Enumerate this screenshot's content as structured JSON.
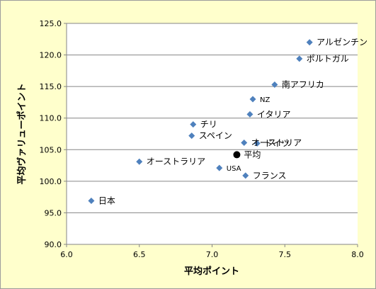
{
  "chart_data": {
    "type": "scatter",
    "title": "",
    "xlabel": "平均ポイント",
    "ylabel": "平均ヴァリューポイント",
    "xlim": [
      6.0,
      8.0
    ],
    "ylim": [
      90.0,
      125.0
    ],
    "xticks": [
      "6.0",
      "6.5",
      "7.0",
      "7.5",
      "8.0"
    ],
    "yticks": [
      "90.0",
      "95.0",
      "100.0",
      "105.0",
      "110.0",
      "115.0",
      "120.0",
      "125.0"
    ],
    "grid": "horizontal",
    "legend": "none",
    "marker_color": "#4F81BD",
    "average_marker_color": "#000000",
    "points": [
      {
        "label": "アルゼンチン",
        "x": 7.67,
        "y": 122.0
      },
      {
        "label": "ポルトガル",
        "x": 7.6,
        "y": 119.4
      },
      {
        "label": "南アフリカ",
        "x": 7.43,
        "y": 115.3
      },
      {
        "label": "NZ",
        "x": 7.28,
        "y": 113.0
      },
      {
        "label": "イタリア",
        "x": 7.26,
        "y": 110.6
      },
      {
        "label": "チリ",
        "x": 6.87,
        "y": 109.0
      },
      {
        "label": "スペイン",
        "x": 6.86,
        "y": 107.2
      },
      {
        "label": "オーストリア",
        "x": 7.22,
        "y": 106.1
      },
      {
        "label": "ドイツ",
        "x": 7.31,
        "y": 106.0
      },
      {
        "label": "オーストラリア",
        "x": 6.5,
        "y": 103.1
      },
      {
        "label": "USA",
        "x": 7.05,
        "y": 102.1
      },
      {
        "label": "フランス",
        "x": 7.23,
        "y": 100.9
      },
      {
        "label": "日本",
        "x": 6.17,
        "y": 96.9
      }
    ],
    "average": {
      "label": "平均",
      "x": 7.17,
      "y": 104.2
    }
  }
}
